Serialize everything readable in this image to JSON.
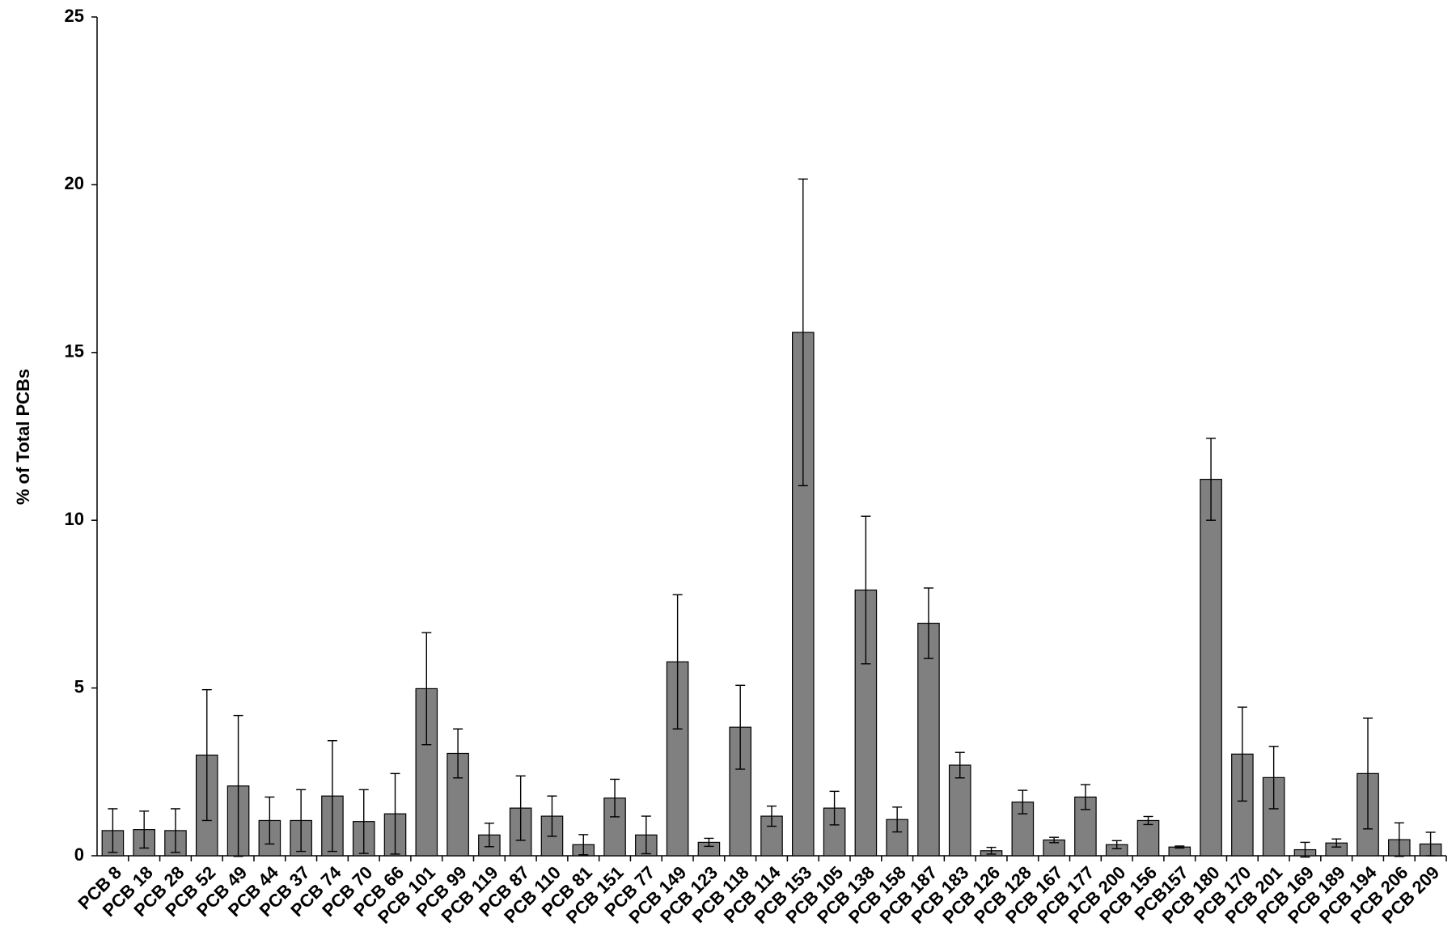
{
  "chart_data": {
    "type": "bar",
    "y_label": "% of Total PCBs",
    "categories": [
      "PCB 8",
      "PCB 18",
      "PCB 28",
      "PCB 52",
      "PCB 49",
      "PCB 44",
      "PCB 37",
      "PCB 74",
      "PCB 70",
      "PCB 66",
      "PCB 101",
      "PCB 99",
      "PCB 119",
      "PCB 87",
      "PCB 110",
      "PCB 81",
      "PCB 151",
      "PCB 77",
      "PCB 149",
      "PCB 123",
      "PCB 118",
      "PCB 114",
      "PCB 153",
      "PCB 105",
      "PCB 138",
      "PCB 158",
      "PCB 187",
      "PCB 183",
      "PCB 126",
      "PCB 128",
      "PCB 167",
      "PCB 177",
      "PCB 200",
      "PCB 156",
      "PCB157",
      "PCB 180",
      "PCB 170",
      "PCB 201",
      "PCB 169",
      "PCB 189",
      "PCB 194",
      "PCB 206",
      "PCB 209"
    ],
    "values": [
      0.75,
      0.78,
      0.75,
      3.0,
      2.08,
      1.05,
      1.05,
      1.78,
      1.02,
      1.25,
      4.98,
      3.05,
      0.62,
      1.42,
      1.18,
      0.33,
      1.72,
      0.62,
      5.78,
      0.4,
      3.83,
      1.18,
      15.6,
      1.42,
      7.92,
      1.08,
      6.93,
      2.7,
      0.15,
      1.6,
      0.47,
      1.75,
      0.33,
      1.05,
      0.26,
      11.22,
      3.03,
      2.33,
      0.18,
      0.38,
      2.45,
      0.48,
      0.35
    ],
    "errors": [
      0.65,
      0.55,
      0.65,
      1.95,
      2.1,
      0.7,
      0.92,
      1.65,
      0.95,
      1.2,
      1.67,
      0.73,
      0.35,
      0.96,
      0.6,
      0.3,
      0.56,
      0.56,
      2.0,
      0.12,
      1.25,
      0.3,
      4.57,
      0.5,
      2.2,
      0.37,
      1.05,
      0.38,
      0.1,
      0.35,
      0.08,
      0.37,
      0.12,
      0.12,
      0.03,
      1.22,
      1.4,
      0.93,
      0.22,
      0.12,
      1.65,
      0.5,
      0.35
    ],
    "color": "#808080",
    "ylim": [
      0,
      25
    ],
    "yticks": [
      0,
      5,
      10,
      15,
      20,
      25
    ]
  }
}
